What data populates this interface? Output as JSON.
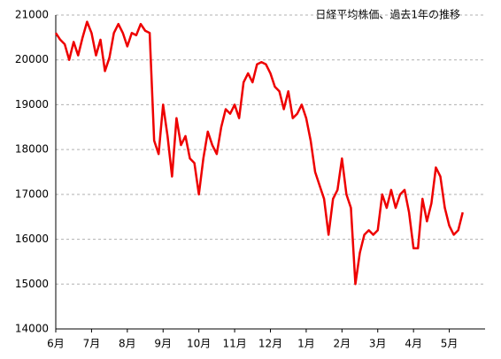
{
  "chart_data": {
    "type": "line",
    "title": "日経平均株価、過去1年の推移",
    "categories": [
      "6月",
      null,
      null,
      null,
      null,
      null,
      null,
      null,
      "7月",
      null,
      null,
      null,
      null,
      null,
      null,
      null,
      "8月",
      null,
      null,
      null,
      null,
      null,
      null,
      null,
      "9月",
      null,
      null,
      null,
      null,
      null,
      null,
      null,
      "10月",
      null,
      null,
      null,
      null,
      null,
      null,
      null,
      "11月",
      null,
      null,
      null,
      null,
      null,
      null,
      null,
      "12月",
      null,
      null,
      null,
      null,
      null,
      null,
      null,
      "1月",
      null,
      null,
      null,
      null,
      null,
      null,
      null,
      "2月",
      null,
      null,
      null,
      null,
      null,
      null,
      null,
      "3月",
      null,
      null,
      null,
      null,
      null,
      null,
      null,
      "4月",
      null,
      null,
      null,
      null,
      null,
      null,
      null,
      "5月",
      null,
      null,
      null
    ],
    "series": [
      {
        "name": "日経平均株価",
        "color": "#ee0000",
        "values": [
          20600,
          20450,
          20350,
          20000,
          20400,
          20100,
          20500,
          20850,
          20600,
          20100,
          20450,
          19750,
          20050,
          20600,
          20800,
          20600,
          20300,
          20600,
          20550,
          20800,
          20650,
          20600,
          18200,
          17900,
          19000,
          18300,
          17400,
          18700,
          18100,
          18300,
          17800,
          17700,
          17000,
          17800,
          18400,
          18100,
          17900,
          18500,
          18900,
          18800,
          19000,
          18700,
          19500,
          19700,
          19500,
          19900,
          19950,
          19900,
          19700,
          19400,
          19300,
          18900,
          19300,
          18700,
          18800,
          19000,
          18700,
          18200,
          17500,
          17200,
          16900,
          16100,
          16900,
          17100,
          17800,
          17000,
          16700,
          15000,
          15700,
          16100,
          16200,
          16100,
          16200,
          17000,
          16700,
          17100,
          16700,
          17000,
          17100,
          16600,
          15800,
          15800,
          16900,
          16400,
          16800,
          17600,
          17400,
          16700,
          16300,
          16100,
          16200,
          16600
        ]
      }
    ],
    "ylim": [
      14000,
      21000
    ],
    "yticks": [
      14000,
      15000,
      16000,
      17000,
      18000,
      19000,
      20000,
      21000
    ],
    "grid": true
  }
}
